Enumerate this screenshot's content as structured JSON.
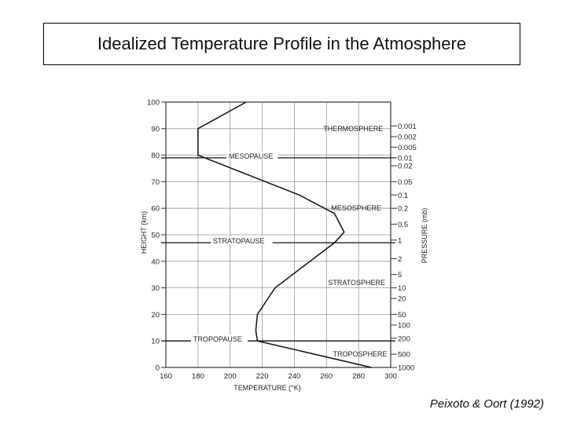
{
  "slide": {
    "title": "Idealized Temperature Profile in the Atmosphere",
    "citation": "Peixoto & Oort (1992)"
  },
  "chart_data": {
    "type": "line",
    "xlabel": "TEMPERATURE (°K)",
    "ylabel": "HEIGHT (km)",
    "y2label": "PRESSURE (mb)",
    "xlim": [
      160,
      300
    ],
    "ylim": [
      0,
      100
    ],
    "xticks": [
      160,
      180,
      200,
      220,
      240,
      260,
      280,
      300
    ],
    "yticks": [
      0,
      10,
      20,
      30,
      40,
      50,
      60,
      70,
      80,
      90,
      100
    ],
    "grid": true,
    "series": [
      {
        "x": [
          288,
          217,
          216,
          217,
          228,
          265,
          271,
          265,
          243,
          180,
          180,
          210
        ],
        "y": [
          0,
          10,
          14,
          20,
          30,
          47,
          51,
          58,
          65,
          80,
          90,
          100
        ]
      }
    ],
    "pressure_ticks": [
      {
        "label": "1000",
        "h": 0
      },
      {
        "label": "500",
        "h": 5
      },
      {
        "label": "200",
        "h": 11
      },
      {
        "label": "100",
        "h": 16
      },
      {
        "label": "50",
        "h": 20
      },
      {
        "label": "20",
        "h": 26
      },
      {
        "label": "10",
        "h": 30
      },
      {
        "label": "5",
        "h": 35
      },
      {
        "label": "2",
        "h": 41
      },
      {
        "label": "1",
        "h": 48
      },
      {
        "label": "0.5",
        "h": 54
      },
      {
        "label": "0.2",
        "h": 60
      },
      {
        "label": "0.1",
        "h": 65
      },
      {
        "label": "0.05",
        "h": 70
      },
      {
        "label": "0.02",
        "h": 76
      },
      {
        "label": "0.01",
        "h": 79
      },
      {
        "label": "0.005",
        "h": 83
      },
      {
        "label": "0.002",
        "h": 87
      },
      {
        "label": "0.001",
        "h": 91
      }
    ],
    "boundaries": [
      {
        "label": "TROPOPAUSE",
        "h": 10
      },
      {
        "label": "STRATOPAUSE",
        "h": 47
      },
      {
        "label": "MESOPAUSE",
        "h": 79
      }
    ],
    "layers": [
      {
        "label": "TROPOSPHERE",
        "h": 5,
        "t": 264
      },
      {
        "label": "STRATOSPHERE",
        "h": 32,
        "t": 261
      },
      {
        "label": "MESOSPHERE",
        "h": 60,
        "t": 263
      },
      {
        "label": "THERMOSPHERE",
        "h": 90,
        "t": 258
      }
    ]
  }
}
